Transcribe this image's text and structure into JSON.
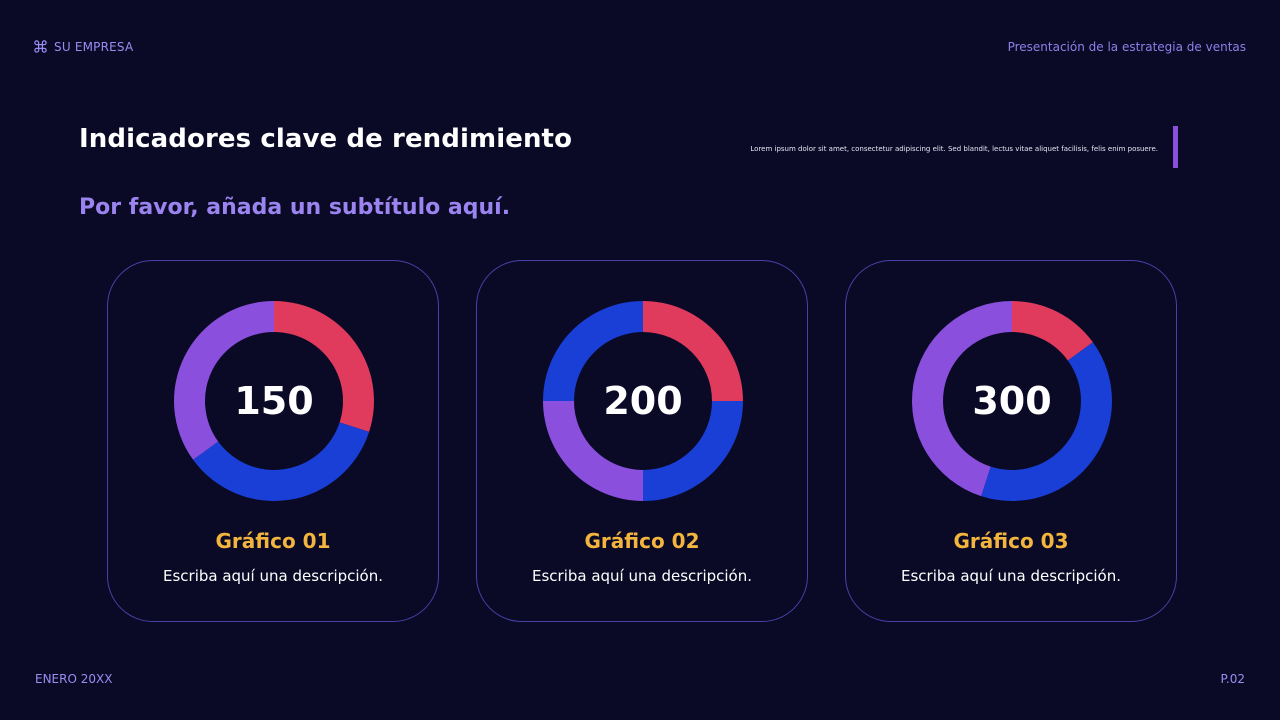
{
  "header": {
    "brand": "SU EMPRESA",
    "brand_icon": "command-icon",
    "presentation_title": "Presentación de la estrategia de ventas"
  },
  "main": {
    "title": "Indicadores clave de rendimiento",
    "subtitle": "Por favor, añada un subtítulo aquí.",
    "description": "Lorem ipsum dolor sit amet, consectetur adipiscing elit. Sed blandit, lectus vitae aliquet facilisis, felis enim posuere."
  },
  "colors": {
    "background": "#0a0a26",
    "red": "#e03a5c",
    "blue": "#1a3fd6",
    "purple": "#8a4fdc",
    "gold": "#f3b53d",
    "accent": "#9b84f0"
  },
  "cards": [
    {
      "title": "Gráfico 01",
      "description": "Escriba aquí una descripción."
    },
    {
      "title": "Gráfico 02",
      "description": "Escriba aquí una descripción."
    },
    {
      "title": "Gráfico 03",
      "description": "Escriba aquí una descripción."
    }
  ],
  "chart_data": [
    {
      "type": "pie",
      "center_label": "150",
      "segments": [
        {
          "color": "#e03a5c",
          "value": 30
        },
        {
          "color": "#1a3fd6",
          "value": 35
        },
        {
          "color": "#8a4fdc",
          "value": 35
        }
      ]
    },
    {
      "type": "pie",
      "center_label": "200",
      "segments": [
        {
          "color": "#e03a5c",
          "value": 25
        },
        {
          "color": "#1a3fd6",
          "value": 25
        },
        {
          "color": "#8a4fdc",
          "value": 25
        },
        {
          "color": "#1a3fd6",
          "value": 25
        }
      ]
    },
    {
      "type": "pie",
      "center_label": "300",
      "segments": [
        {
          "color": "#e03a5c",
          "value": 15
        },
        {
          "color": "#1a3fd6",
          "value": 40
        },
        {
          "color": "#8a4fdc",
          "value": 45
        }
      ]
    }
  ],
  "footer": {
    "date": "ENERO 20XX",
    "page": "P.02"
  }
}
